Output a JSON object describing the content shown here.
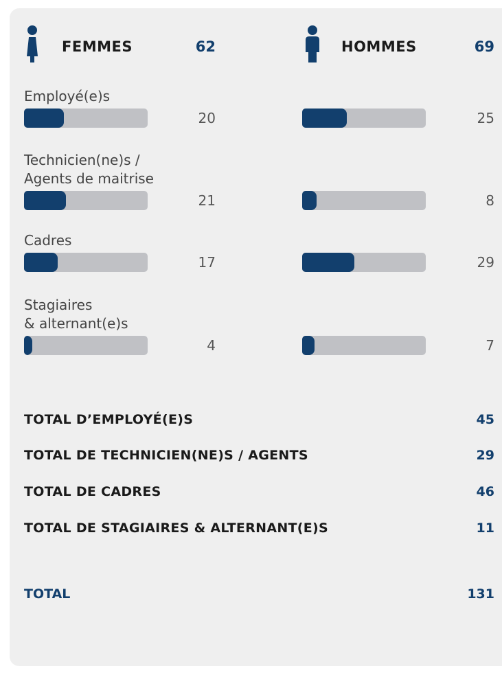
{
  "groups": [
    {
      "name": "FEMMES",
      "total": 62,
      "values": [
        20,
        21,
        17,
        4
      ]
    },
    {
      "name": "HOMMES",
      "total": 69,
      "values": [
        25,
        8,
        29,
        7
      ]
    }
  ],
  "categories": [
    [
      "Employé(e)s"
    ],
    [
      "Technicien(ne)s /",
      "Agents de maitrise"
    ],
    [
      "Cadres"
    ],
    [
      "Stagiaires",
      "& alternant(e)s"
    ]
  ],
  "totals": [
    {
      "label": "TOTAL D’EMPLOYÉ(E)S",
      "value": 45
    },
    {
      "label": "TOTAL DE TECHNICIEN(NE)S / AGENTS",
      "value": 29
    },
    {
      "label": "TOTAL DE CADRES",
      "value": 46
    },
    {
      "label": "TOTAL DE STAGIAIRES & ALTERNANT(E)S",
      "value": 11
    }
  ],
  "grand_total": {
    "label": "TOTAL",
    "value": 131
  }
}
